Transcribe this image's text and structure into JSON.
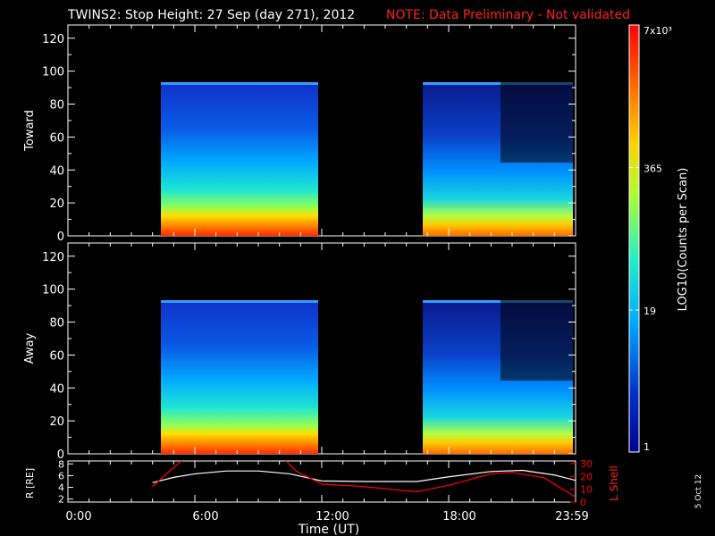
{
  "header": {
    "title": "TWINS2: Stop Height: 27 Sep (day 271), 2012",
    "note": "NOTE: Data Preliminary - Not validated"
  },
  "colorbar": {
    "label": "LOG10(Counts per Scan)",
    "ticks": [
      "7x10³",
      "365",
      "19",
      "1"
    ],
    "tick_values": [
      7000,
      365,
      19,
      1
    ],
    "gradient_colors": [
      "#ff0000",
      "#ff6a00",
      "#ffd400",
      "#aaff33",
      "#22eecc",
      "#00a8ff",
      "#0033cc",
      "#000090"
    ]
  },
  "x_ticks": [
    "0:00",
    "6:00",
    "12:00",
    "18:00",
    "23:59"
  ],
  "xlabel": "Time (UT)",
  "date_stamp": "5 Oct 12",
  "orbit": {
    "ylabel_left": "R [RE]",
    "ylabel_right": "L Shell",
    "left_ticks": [
      "8",
      "6",
      "4",
      "2"
    ],
    "right_ticks": [
      "30",
      "20",
      "10",
      "0"
    ],
    "left_color": "#ffffff",
    "right_color": "#ff0000"
  },
  "chart_data": [
    {
      "type": "heatmap",
      "ylabel": "Toward",
      "yticks": [
        "120",
        "100",
        "80",
        "60",
        "40",
        "20",
        "0"
      ],
      "ylim": [
        0,
        128
      ],
      "xlim_hours": [
        0,
        24
      ],
      "data_intervals_hours": [
        [
          4.3,
          11.7
        ],
        [
          16.9,
          23.9
        ]
      ],
      "value_top_height": 92,
      "color_scale": "log10 counts, 1 to 7000"
    },
    {
      "type": "heatmap",
      "ylabel": "Away",
      "yticks": [
        "120",
        "100",
        "80",
        "60",
        "40",
        "20",
        "0"
      ],
      "ylim": [
        0,
        128
      ],
      "xlim_hours": [
        0,
        24
      ],
      "data_intervals_hours": [
        [
          4.3,
          11.7
        ],
        [
          16.9,
          23.9
        ]
      ],
      "value_top_height": 92,
      "color_scale": "log10 counts, 1 to 7000"
    },
    {
      "type": "line",
      "xlim_hours": [
        0,
        24
      ],
      "series": [
        {
          "name": "R [RE]",
          "color": "#ffffff",
          "x": [
            4.0,
            5.0,
            6.0,
            7.5,
            9.0,
            10.5,
            12.0,
            14.0,
            16.5,
            18.0,
            20.0,
            21.5,
            23.0,
            24.0
          ],
          "y": [
            4.8,
            5.7,
            6.3,
            6.8,
            6.8,
            6.3,
            5.1,
            5.0,
            5.0,
            5.8,
            6.7,
            6.9,
            6.1,
            5.2
          ]
        },
        {
          "name": "L Shell",
          "color": "#ff0000",
          "x": [
            4.0,
            4.8,
            5.5,
            10.2,
            10.8,
            12.0,
            14.0,
            16.5,
            18.0,
            20.0,
            21.0,
            22.5,
            24.0
          ],
          "y": [
            12,
            24,
            34,
            34,
            24,
            14,
            12,
            8,
            13,
            22,
            23,
            19,
            4
          ]
        }
      ],
      "ylim_left": [
        1.5,
        8.5
      ],
      "ylim_right": [
        0,
        32
      ]
    }
  ]
}
